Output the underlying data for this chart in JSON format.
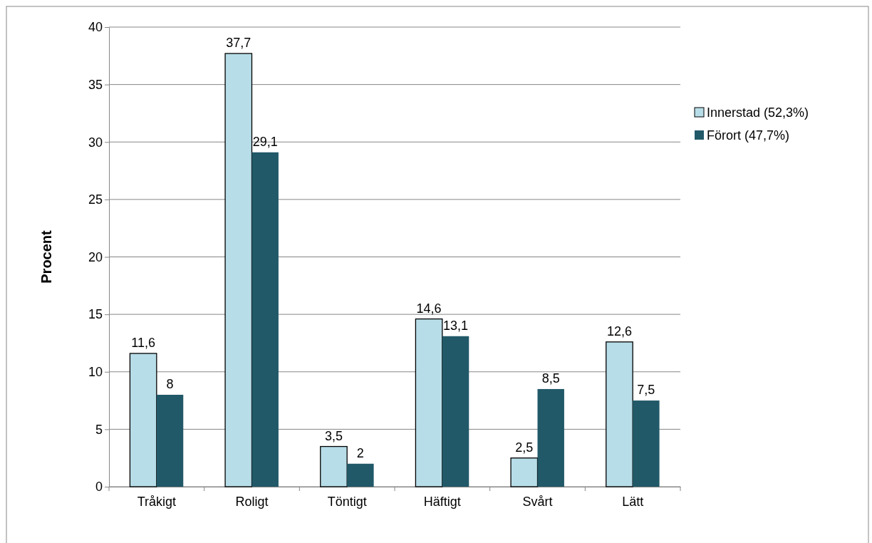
{
  "chart_data": {
    "type": "bar",
    "ylabel": "Procent",
    "categories": [
      "Tråkigt",
      "Roligt",
      "Töntigt",
      "Häftigt",
      "Svårt",
      "Lätt"
    ],
    "series": [
      {
        "name": "Innerstad (52,3%)",
        "color": "#b7dde8",
        "values": [
          11.6,
          37.7,
          3.5,
          14.6,
          2.5,
          12.6
        ],
        "value_labels": [
          "11,6",
          "37,7",
          "3,5",
          "14,6",
          "2,5",
          "12,6"
        ]
      },
      {
        "name": "Förort (47,7%)",
        "color": "#215968",
        "values": [
          8,
          29.1,
          2,
          13.1,
          8.5,
          7.5
        ],
        "value_labels": [
          "8",
          "29,1",
          "2",
          "13,1",
          "8,5",
          "7,5"
        ]
      }
    ],
    "ylim": [
      0,
      40
    ],
    "yticks": [
      0,
      5,
      10,
      15,
      20,
      25,
      30,
      35,
      40
    ],
    "grid": "y",
    "legend": "right"
  }
}
